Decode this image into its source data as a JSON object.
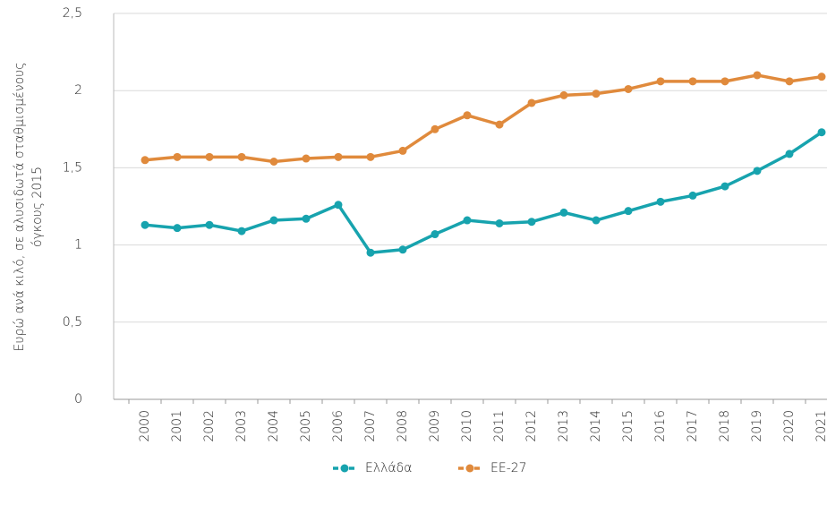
{
  "chart_data": {
    "type": "line",
    "ylabel": [
      "Ευρώ ανά κιλό, σε αλυσιδωτά σταθμισμένους",
      "όγκους 2015"
    ],
    "categories": [
      "2000",
      "2001",
      "2002",
      "2003",
      "2004",
      "2005",
      "2006",
      "2007",
      "2008",
      "2009",
      "2010",
      "2011",
      "2012",
      "2013",
      "2014",
      "2015",
      "2016",
      "2017",
      "2018",
      "2019",
      "2020",
      "2021"
    ],
    "series": [
      {
        "name": "Ελλάδα",
        "color": "#17a3ae",
        "values": [
          1.13,
          1.11,
          1.13,
          1.09,
          1.16,
          1.17,
          1.26,
          0.95,
          0.97,
          1.07,
          1.16,
          1.14,
          1.15,
          1.21,
          1.16,
          1.22,
          1.28,
          1.32,
          1.38,
          1.48,
          1.59,
          1.73
        ]
      },
      {
        "name": "EE-27",
        "color": "#e08a3c",
        "values": [
          1.55,
          1.57,
          1.57,
          1.57,
          1.54,
          1.56,
          1.57,
          1.57,
          1.61,
          1.75,
          1.84,
          1.78,
          1.92,
          1.97,
          1.98,
          2.01,
          2.06,
          2.06,
          2.06,
          2.1,
          2.06,
          2.09
        ]
      }
    ],
    "ylim": [
      0,
      2.5
    ],
    "yticks": [
      0,
      {
        "value": 0.5,
        "label": "0,5"
      },
      1,
      {
        "value": 1.5,
        "label": "1,5"
      },
      2,
      {
        "value": 2.5,
        "label": "2,5"
      }
    ],
    "grid": true,
    "legend": "bottom"
  }
}
